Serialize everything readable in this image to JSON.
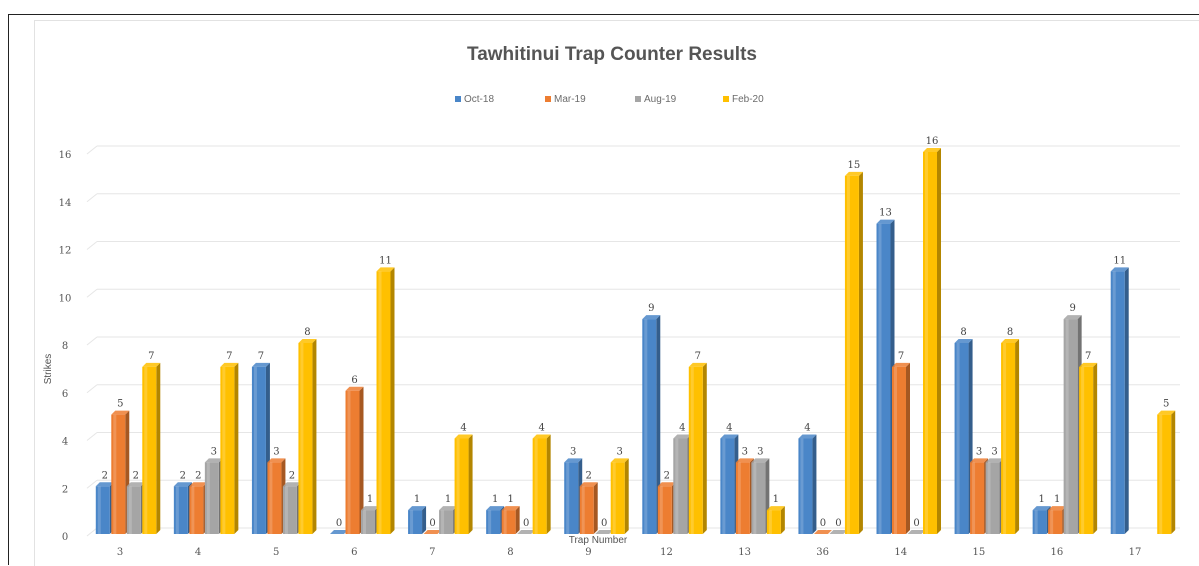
{
  "chart_data": {
    "type": "bar",
    "title": "Tawhitinui Trap Counter Results",
    "xlabel": "Trap Number",
    "ylabel": "Strikes",
    "categories": [
      "3",
      "4",
      "5",
      "6",
      "7",
      "8",
      "9",
      "12",
      "13",
      "36",
      "14",
      "15",
      "16",
      "17"
    ],
    "ylim": [
      0,
      16
    ],
    "yticks": [
      "0",
      "2",
      "4",
      "6",
      "8",
      "10",
      "12",
      "14",
      "16"
    ],
    "grid": true,
    "legend_position": "top",
    "series": [
      {
        "name": "Oct-18",
        "color": "#4a86c8",
        "values": [
          2,
          2,
          7,
          0,
          1,
          1,
          3,
          9,
          4,
          4,
          13,
          8,
          1,
          11
        ]
      },
      {
        "name": "Mar-19",
        "color": "#ed7d31",
        "values": [
          5,
          2,
          3,
          6,
          0,
          1,
          2,
          2,
          3,
          0,
          7,
          3,
          1,
          null
        ]
      },
      {
        "name": "Aug-19",
        "color": "#a5a5a5",
        "values": [
          2,
          3,
          2,
          1,
          1,
          0,
          0,
          4,
          3,
          0,
          0,
          3,
          9,
          null
        ]
      },
      {
        "name": "Feb-20",
        "color": "#ffc000",
        "values": [
          7,
          7,
          8,
          11,
          4,
          4,
          3,
          7,
          1,
          15,
          16,
          8,
          7,
          5
        ]
      }
    ]
  }
}
